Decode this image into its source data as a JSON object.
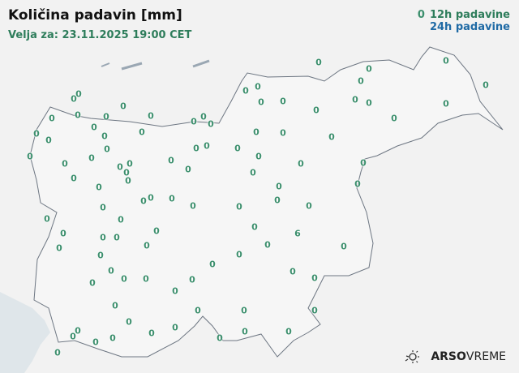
{
  "header": {
    "title": "Količina padavin [mm]",
    "valid_for": "Velja za: 23.11.2025 19:00 CET"
  },
  "legend": {
    "marker": "0",
    "items": [
      {
        "label": "12h padavine",
        "color": "#2e7d5b"
      },
      {
        "label": "24h padavine",
        "color": "#1f6aa5"
      }
    ]
  },
  "logo": {
    "bold": "ARSO",
    "light": "VREME",
    "icon": "sun-icon"
  },
  "colors": {
    "value_text": "#3c8f6d",
    "sea": "#dfe6ea",
    "land": "#f4f4f4",
    "border": "#6d7682"
  },
  "stations_12h": [
    "0",
    "0",
    "0",
    "0",
    "0",
    "0",
    "0",
    "0",
    "0",
    "0",
    "0",
    "0",
    "0",
    "0",
    "0",
    "0",
    "0",
    "0",
    "0",
    "0",
    "0",
    "0",
    "0",
    "0",
    "0",
    "0",
    "0",
    "0",
    "0",
    "0",
    "0",
    "0",
    "0",
    "0",
    "0",
    "0",
    "0",
    "0",
    "0",
    "0",
    "0",
    "0",
    "0",
    "0",
    "0",
    "0",
    "0",
    "0",
    "0",
    "0",
    "0",
    "0",
    "0",
    "0",
    "0",
    "0",
    "0",
    "0",
    "0",
    "0",
    "0",
    "0",
    "0",
    "0",
    "0",
    "0",
    "6",
    "0",
    "0",
    "0",
    "0",
    "0",
    "0",
    "0",
    "0",
    "0",
    "0",
    "0",
    "0",
    "0",
    "0",
    "0",
    "0",
    "0",
    "0",
    "0",
    "0",
    "0",
    "0",
    "0",
    "0",
    "0",
    "0",
    "0",
    "0",
    "0",
    "0",
    "0",
    "0"
  ]
}
